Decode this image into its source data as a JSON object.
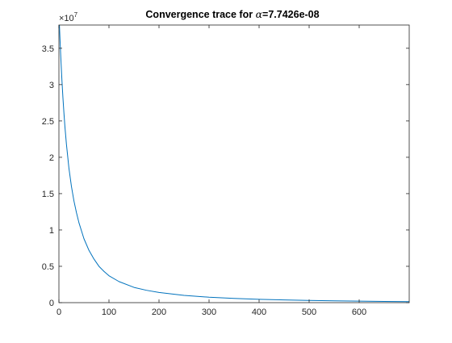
{
  "chart_data": {
    "type": "line",
    "title": {
      "prefix": "Convergence trace for ",
      "symbol": "α",
      "suffix": "=7.7426e-08"
    },
    "xlabel": "",
    "ylabel": "",
    "xlim": [
      0,
      700
    ],
    "ylim": [
      0,
      38200000
    ],
    "x_ticks": [
      0,
      100,
      200,
      300,
      400,
      500,
      600
    ],
    "y_ticks": [
      0,
      0.5,
      1,
      1.5,
      2,
      2.5,
      3,
      3.5
    ],
    "y_tick_labels": [
      "0",
      "0.5",
      "1",
      "1.5",
      "2",
      "2.5",
      "3",
      "3.5"
    ],
    "y_exponent": {
      "base": "×10",
      "power": "7"
    },
    "grid": false,
    "series": [
      {
        "color": "#0072BD",
        "x": [
          1,
          2,
          3,
          4,
          5,
          6,
          8,
          10,
          12,
          15,
          20,
          25,
          30,
          35,
          40,
          45,
          50,
          60,
          70,
          80,
          90,
          100,
          120,
          150,
          175,
          200,
          250,
          300,
          350,
          400,
          450,
          500,
          550,
          600,
          650,
          700
        ],
        "y": [
          38200000,
          36500000,
          34900000,
          33400000,
          32000000,
          30600000,
          28200000,
          26100000,
          24200000,
          21800000,
          18500000,
          16000000,
          14000000,
          12400000,
          11000000,
          9900000,
          8800000,
          7200000,
          6000000,
          5000000,
          4300000,
          3700000,
          2900000,
          2100000,
          1700000,
          1400000,
          1000000,
          750000,
          580000,
          460000,
          370000,
          300000,
          250000,
          210000,
          170000,
          140000
        ]
      }
    ]
  }
}
